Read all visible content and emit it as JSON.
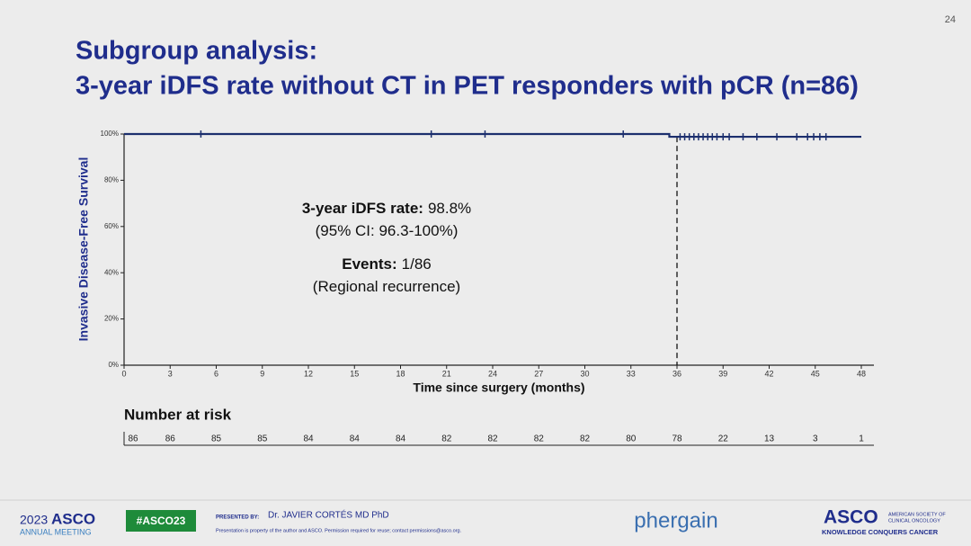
{
  "page_number": "24",
  "chart_data": {
    "type": "line",
    "title": "Subgroup analysis:",
    "subtitle": "3-year iDFS rate without CT in PET responders with pCR (n=86)",
    "y_label": "Invasive Disease-Free Survival",
    "x_label": "Time since surgery (months)",
    "color": "#1c2f6e",
    "x": [
      0,
      35.5,
      35.5,
      48
    ],
    "values": [
      100,
      100,
      98.8,
      98.8
    ],
    "censor_x": [
      5,
      20,
      23.5,
      32.5,
      36.2,
      36.5,
      36.8,
      37.1,
      37.4,
      37.7,
      38,
      38.3,
      38.6,
      39,
      39.4,
      40.3,
      41.2,
      42.5,
      43.8,
      44.5,
      44.9,
      45.3,
      45.7
    ],
    "censor_values": [
      100,
      100,
      100,
      100,
      98.8,
      98.8,
      98.8,
      98.8,
      98.8,
      98.8,
      98.8,
      98.8,
      98.8,
      98.8,
      98.8,
      98.8,
      98.8,
      98.8,
      98.8,
      98.8,
      98.8,
      98.8,
      98.8
    ],
    "reference_x": 36,
    "xlim": [
      0,
      48
    ],
    "ylim": [
      0,
      100
    ],
    "xticks": [
      0,
      3,
      6,
      9,
      12,
      15,
      18,
      21,
      24,
      27,
      30,
      33,
      36,
      39,
      42,
      45,
      48
    ],
    "yticks": [
      {
        "value": 0,
        "label": "0%"
      },
      {
        "value": 20,
        "label": "20%"
      },
      {
        "value": 40,
        "label": "40%"
      },
      {
        "value": 60,
        "label": "60%"
      },
      {
        "value": 80,
        "label": "80%"
      },
      {
        "value": 100,
        "label": "100%"
      }
    ],
    "annotations": [
      {
        "bold": "3-year iDFS rate:",
        "text": "98.8%"
      },
      {
        "text": "(95% CI: 96.3-100%)"
      },
      {
        "bold": "Events:",
        "text": "1/86"
      },
      {
        "text": "(Regional recurrence)"
      }
    ],
    "risk_title": "Number at risk",
    "at_risk": [
      86,
      86,
      85,
      85,
      84,
      84,
      84,
      82,
      82,
      82,
      82,
      80,
      78,
      22,
      13,
      3,
      1
    ]
  },
  "footer": {
    "year": "2023",
    "asco": "ASCO",
    "meeting": "ANNUAL MEETING",
    "hashtag": "#ASCO23",
    "presented_by": "PRESENTED BY:",
    "presenter": "Dr. JAVIER CORTÉS MD PhD",
    "notice": "Presentation is property of the author and ASCO. Permission required for reuse; contact permissions@asco.org.",
    "sponsor": "phergain",
    "asco_logo": "ASCO",
    "society": [
      "AMERICAN SOCIETY OF",
      "CLINICAL ONCOLOGY"
    ],
    "motto": "KNOWLEDGE CONQUERS CANCER"
  }
}
